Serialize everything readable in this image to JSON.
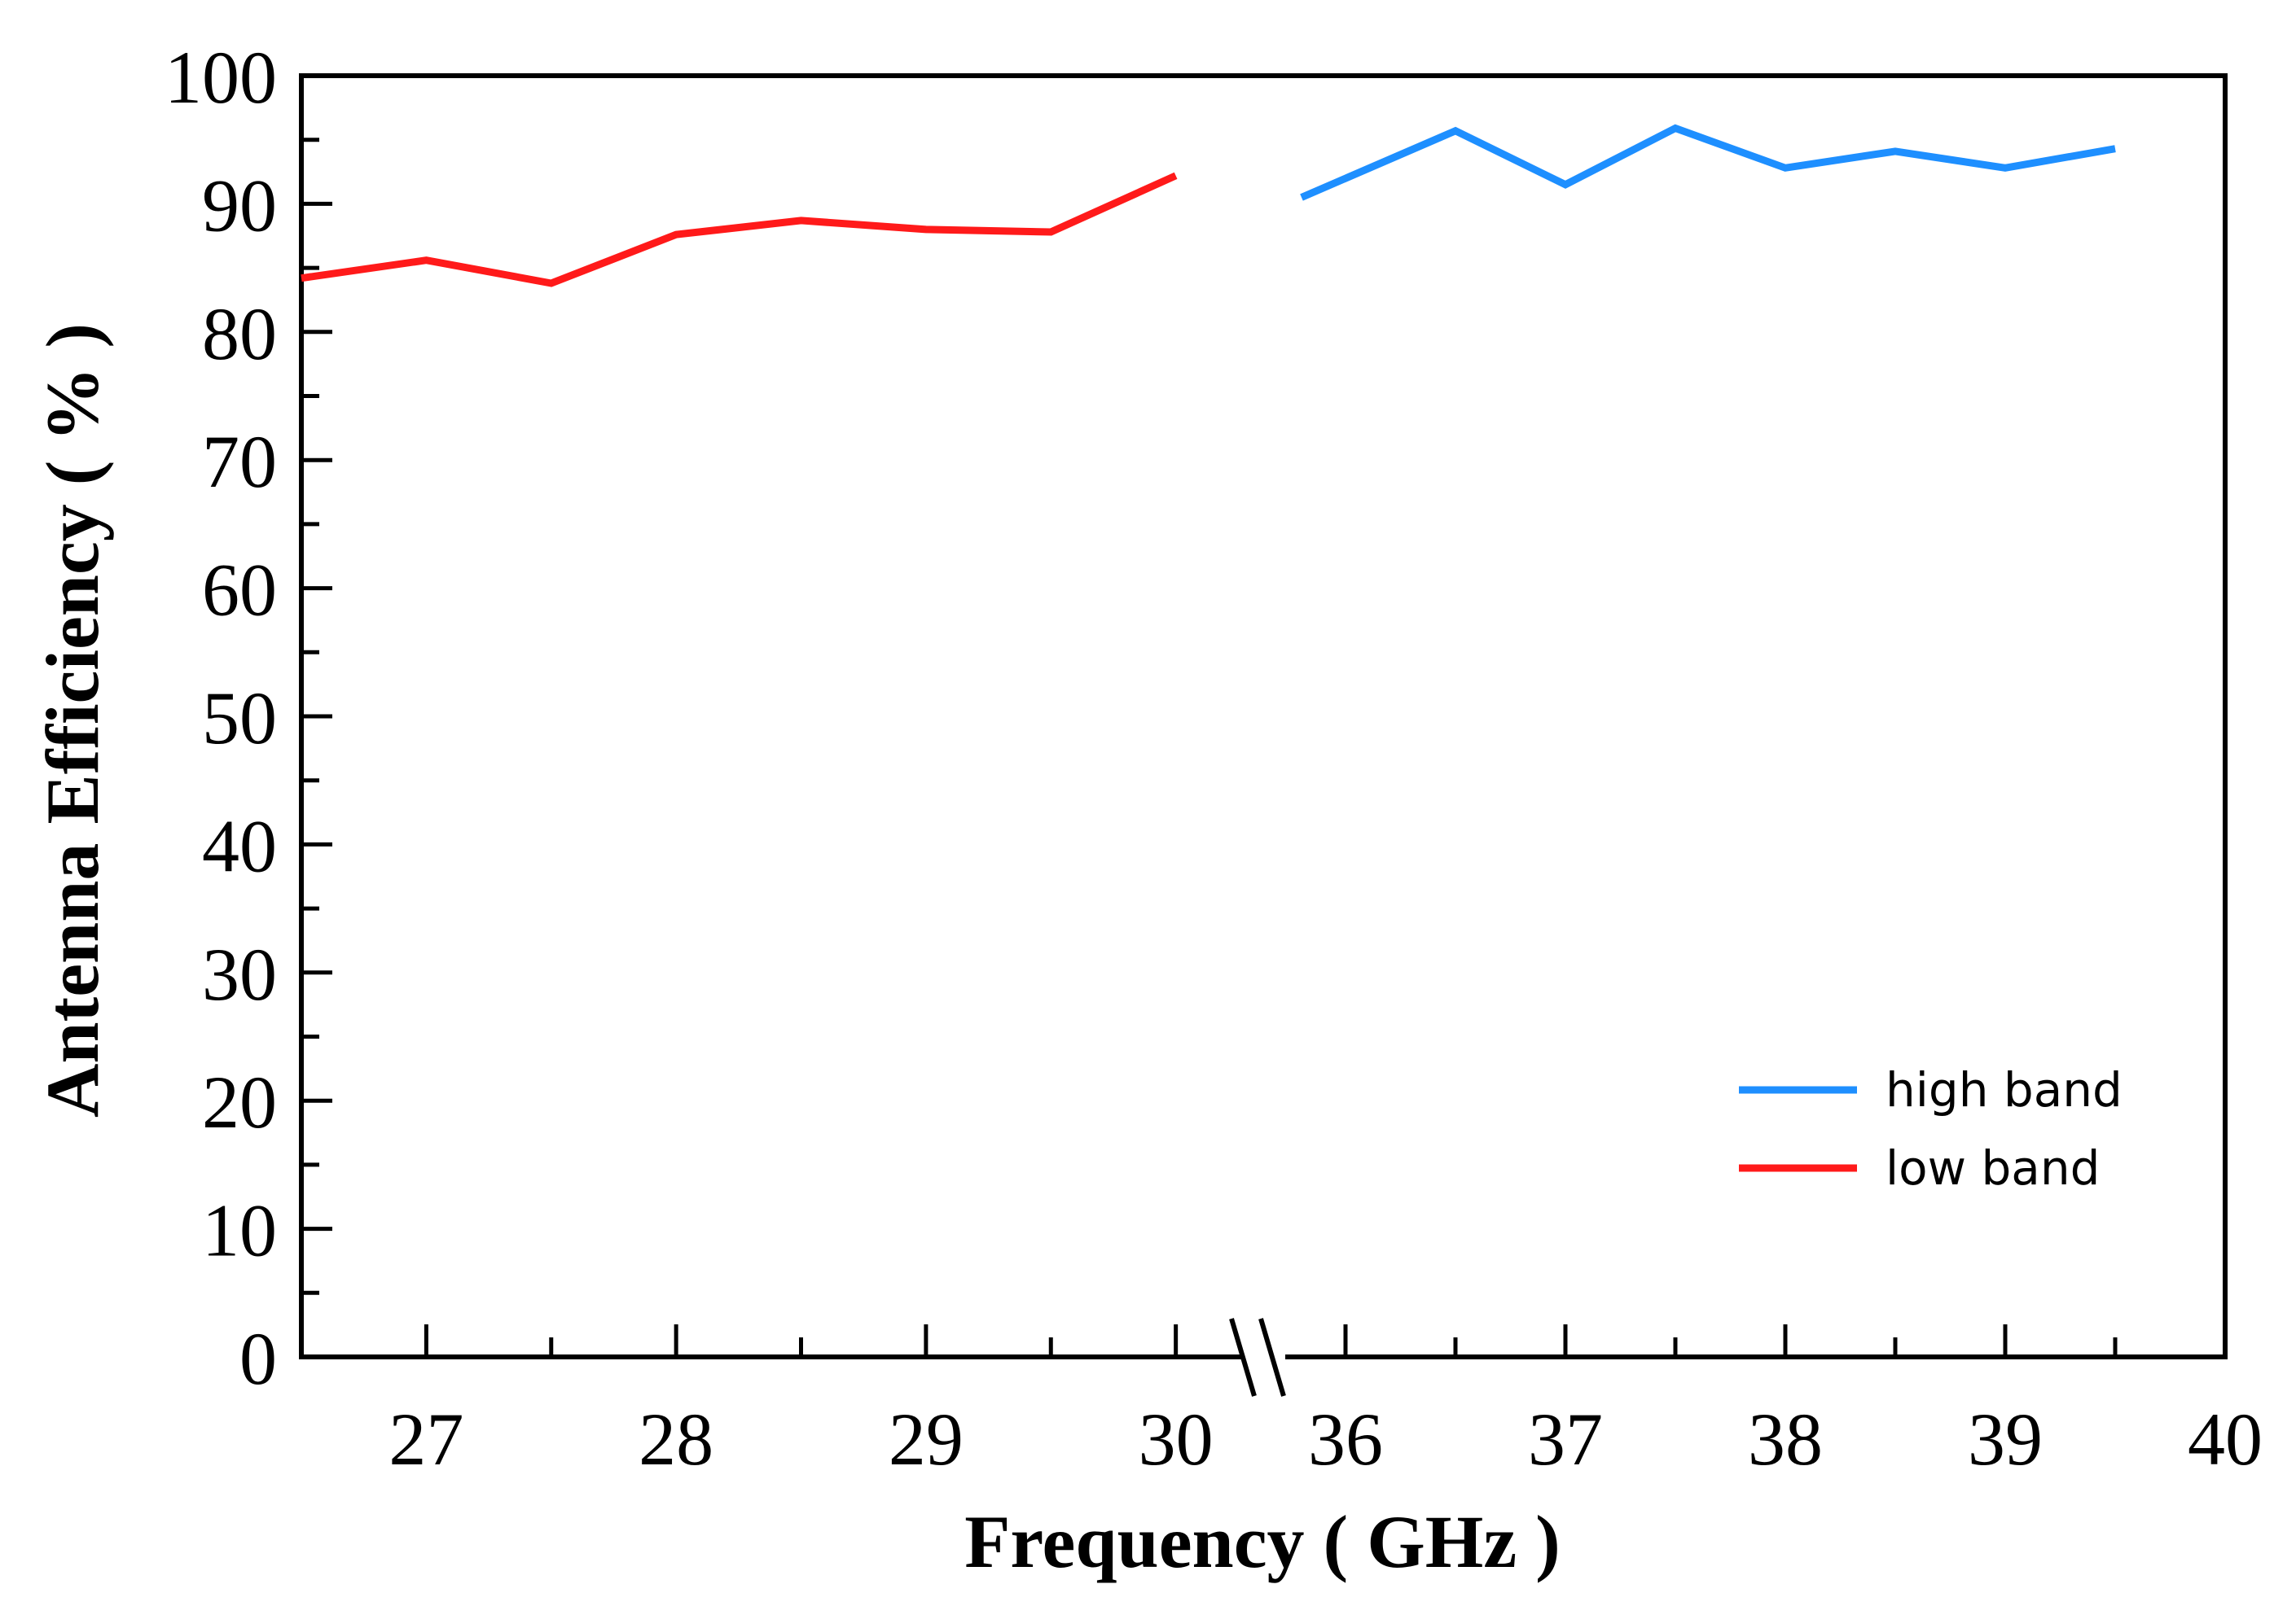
{
  "chart_data": {
    "type": "line",
    "title": "",
    "xlabel": "Frequency ( GHz )",
    "ylabel": "Antenna Efficiency ( % )",
    "ylim": [
      0,
      100
    ],
    "y_ticks": [
      "0",
      "10",
      "20",
      "30",
      "40",
      "50",
      "60",
      "70",
      "80",
      "90",
      "100"
    ],
    "x_axis": {
      "broken": true,
      "left_segment": {
        "range": [
          26.5,
          30.2
        ],
        "ticks": [
          "27",
          "28",
          "29",
          "30"
        ]
      },
      "right_segment": {
        "range": [
          35.8,
          40
        ],
        "ticks": [
          "36",
          "37",
          "38",
          "39",
          "40"
        ]
      }
    },
    "legend_position": "bottom-right",
    "series": [
      {
        "name": "high band",
        "color": "#1e8fff",
        "x": [
          35.8,
          36.5,
          37.0,
          37.5,
          38.0,
          38.5,
          39.0,
          39.5
        ],
        "y": [
          90.5,
          95.7,
          91.5,
          95.9,
          92.8,
          94.1,
          92.8,
          94.3
        ]
      },
      {
        "name": "low band",
        "color": "#ff1a1a",
        "x": [
          26.5,
          27.0,
          27.5,
          28.0,
          28.5,
          29.0,
          29.5,
          30.0
        ],
        "y": [
          84.2,
          85.6,
          83.8,
          87.6,
          88.7,
          88.0,
          87.8,
          92.2
        ]
      }
    ]
  }
}
